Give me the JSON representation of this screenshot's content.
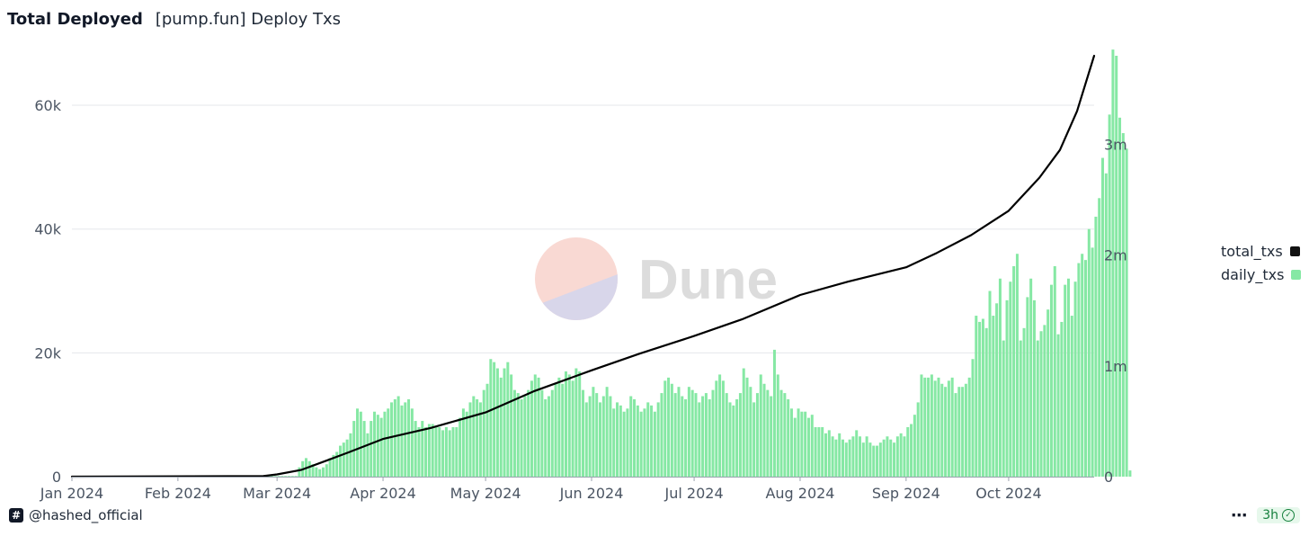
{
  "header": {
    "title": "Total Deployed",
    "subtitle": "[pump.fun] Deploy Txs"
  },
  "footer": {
    "handle": "@hashed_official",
    "freshness": "3h",
    "more_icon": "more-icon",
    "badge_icon": "dune-logo-icon"
  },
  "watermark": {
    "text": "Dune"
  },
  "colors": {
    "daily": "#86e8a4",
    "total": "#000000",
    "grid": "#e5e7eb",
    "axis_text": "#4b5563"
  },
  "chart_data": {
    "type": "bar",
    "title": "Total Deployed",
    "subtitle": "[pump.fun] Deploy Txs",
    "x_ticks": [
      "Jan 2024",
      "Feb 2024",
      "Mar 2024",
      "Apr 2024",
      "May 2024",
      "Jun 2024",
      "Jul 2024",
      "Aug 2024",
      "Sep 2024",
      "Oct 2024"
    ],
    "x_range": [
      "2024-01-01",
      "2024-10-26"
    ],
    "y_left": {
      "ticks": [
        "0",
        "20k",
        "40k",
        "60k"
      ],
      "range": [
        0,
        68000
      ]
    },
    "y_right": {
      "ticks": [
        "0",
        "1m",
        "2m",
        "3m"
      ],
      "range": [
        0,
        3800000
      ]
    },
    "grid": true,
    "legend_position": "right",
    "series": [
      {
        "name": "daily_txs",
        "type": "bar",
        "axis": "left",
        "start_date": "2024-01-01",
        "values": [
          0,
          0,
          0,
          0,
          0,
          0,
          0,
          0,
          0,
          0,
          0,
          0,
          0,
          0,
          0,
          0,
          0,
          0,
          0,
          0,
          0,
          0,
          0,
          0,
          0,
          0,
          0,
          0,
          0,
          0,
          0,
          100,
          100,
          100,
          100,
          100,
          100,
          100,
          100,
          100,
          100,
          100,
          100,
          100,
          100,
          100,
          100,
          100,
          100,
          100,
          100,
          100,
          100,
          100,
          100,
          100,
          100,
          100,
          100,
          100,
          100,
          100,
          100,
          100,
          100,
          100,
          1500,
          2500,
          3000,
          2500,
          2000,
          1500,
          1200,
          1500,
          2000,
          3000,
          3500,
          4000,
          5000,
          5500,
          6000,
          7000,
          9000,
          11000,
          10500,
          9000,
          7000,
          9000,
          10500,
          10000,
          9500,
          10500,
          11000,
          12000,
          12500,
          13000,
          11500,
          12000,
          12500,
          11000,
          9000,
          8000,
          9000,
          8000,
          8500,
          8500,
          8000,
          8000,
          7500,
          8000,
          7500,
          8000,
          8000,
          9500,
          11000,
          10500,
          12000,
          13000,
          12500,
          12000,
          14000,
          15000,
          19000,
          18500,
          17500,
          16000,
          17500,
          18500,
          16500,
          14000,
          13500,
          12500,
          13000,
          14000,
          15500,
          16500,
          16000,
          14000,
          12500,
          13000,
          14000,
          15000,
          16000,
          15000,
          17000,
          16500,
          15500,
          17500,
          17000,
          14000,
          12000,
          13000,
          14500,
          13500,
          12000,
          13000,
          14500,
          13000,
          11000,
          12000,
          11500,
          10500,
          11000,
          13000,
          12500,
          11500,
          10500,
          11000,
          12000,
          11500,
          10500,
          12000,
          13500,
          15500,
          16000,
          15000,
          13500,
          14500,
          13000,
          12500,
          14500,
          14000,
          13500,
          12000,
          13000,
          13500,
          12500,
          14000,
          15500,
          16500,
          15500,
          13500,
          12000,
          11500,
          12500,
          13500,
          17500,
          16000,
          14500,
          12000,
          13500,
          16500,
          15000,
          14000,
          13000,
          20500,
          16500,
          14000,
          13500,
          12500,
          11000,
          9500,
          11000,
          10500,
          10500,
          9500,
          10000,
          8000,
          8000,
          8000,
          7000,
          7500,
          6500,
          6000,
          7000,
          6000,
          5500,
          6000,
          6500,
          7500,
          6500,
          5500,
          6500,
          5500,
          5000,
          5000,
          5500,
          6000,
          6500,
          6000,
          5500,
          6500,
          7000,
          6500,
          8000,
          8500,
          10000,
          12000,
          16500,
          16000,
          16000,
          16500,
          15500,
          16000,
          15000,
          14500,
          15500,
          16000,
          13500,
          14500,
          14500,
          15000,
          16000,
          19000,
          26000,
          25000,
          25500,
          24000,
          30000,
          26000,
          28000,
          32000,
          22000,
          28500,
          31500,
          34000,
          36000,
          22000,
          24000,
          29000,
          32000,
          28500,
          22000,
          23500,
          24500,
          27000,
          31000,
          34000,
          23000,
          25000,
          31000,
          32000,
          26000,
          31500,
          34500,
          36000,
          35000,
          40000,
          37000,
          42000,
          45000,
          51500,
          49000,
          58500,
          69000,
          68000,
          58000,
          55500,
          53000,
          1000
        ]
      },
      {
        "name": "total_txs",
        "type": "line",
        "axis": "right",
        "points": [
          [
            "2024-01-01",
            0
          ],
          [
            "2024-02-26",
            5000
          ],
          [
            "2024-03-01",
            20000
          ],
          [
            "2024-03-08",
            60000
          ],
          [
            "2024-03-15",
            140000
          ],
          [
            "2024-03-22",
            220000
          ],
          [
            "2024-04-01",
            340000
          ],
          [
            "2024-04-15",
            440000
          ],
          [
            "2024-05-01",
            580000
          ],
          [
            "2024-05-15",
            770000
          ],
          [
            "2024-06-01",
            960000
          ],
          [
            "2024-06-15",
            1110000
          ],
          [
            "2024-07-01",
            1270000
          ],
          [
            "2024-07-15",
            1420000
          ],
          [
            "2024-08-01",
            1640000
          ],
          [
            "2024-08-15",
            1760000
          ],
          [
            "2024-09-01",
            1890000
          ],
          [
            "2024-09-10",
            2020000
          ],
          [
            "2024-09-20",
            2180000
          ],
          [
            "2024-10-01",
            2400000
          ],
          [
            "2024-10-10",
            2700000
          ],
          [
            "2024-10-16",
            2950000
          ],
          [
            "2024-10-21",
            3300000
          ],
          [
            "2024-10-26",
            3800000
          ]
        ]
      }
    ]
  }
}
